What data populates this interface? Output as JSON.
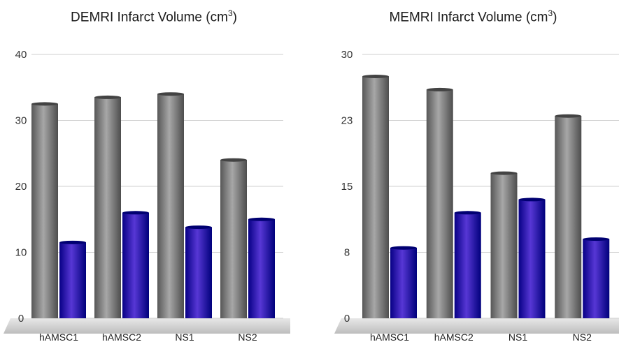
{
  "chart_data": [
    {
      "type": "bar",
      "title": "DEMRI Infarct Volume (cm",
      "title_sup": "3",
      "title_tail": ")",
      "categories": [
        "hAMSC1",
        "hAMSC2",
        "NS1",
        "NS2"
      ],
      "series": [
        {
          "values": [
            32.5,
            33.5,
            34,
            24
          ],
          "color": "#7a7a7a"
        },
        {
          "values": [
            11.5,
            16,
            13.8,
            15
          ],
          "color": "#2a0aa8"
        }
      ],
      "yticks": [
        "0",
        "10",
        "20",
        "30",
        "40"
      ],
      "ylim": [
        0,
        40
      ],
      "grid": true
    },
    {
      "type": "bar",
      "title": "MEMRI Infarct Volume (cm",
      "title_sup": "3",
      "title_tail": ")",
      "categories": [
        "hAMSC1",
        "hAMSC2",
        "NS1",
        "NS2"
      ],
      "series": [
        {
          "values": [
            27.5,
            26,
            16.5,
            23
          ],
          "color": "#7a7a7a"
        },
        {
          "values": [
            8,
            12,
            13.5,
            9
          ],
          "color": "#2a0aa8"
        }
      ],
      "yticks": [
        "0",
        "8",
        "15",
        "23",
        "30"
      ],
      "ytick_values": [
        0,
        7.5,
        15,
        22.5,
        30
      ],
      "ylim": [
        0,
        30
      ],
      "grid": true
    }
  ]
}
